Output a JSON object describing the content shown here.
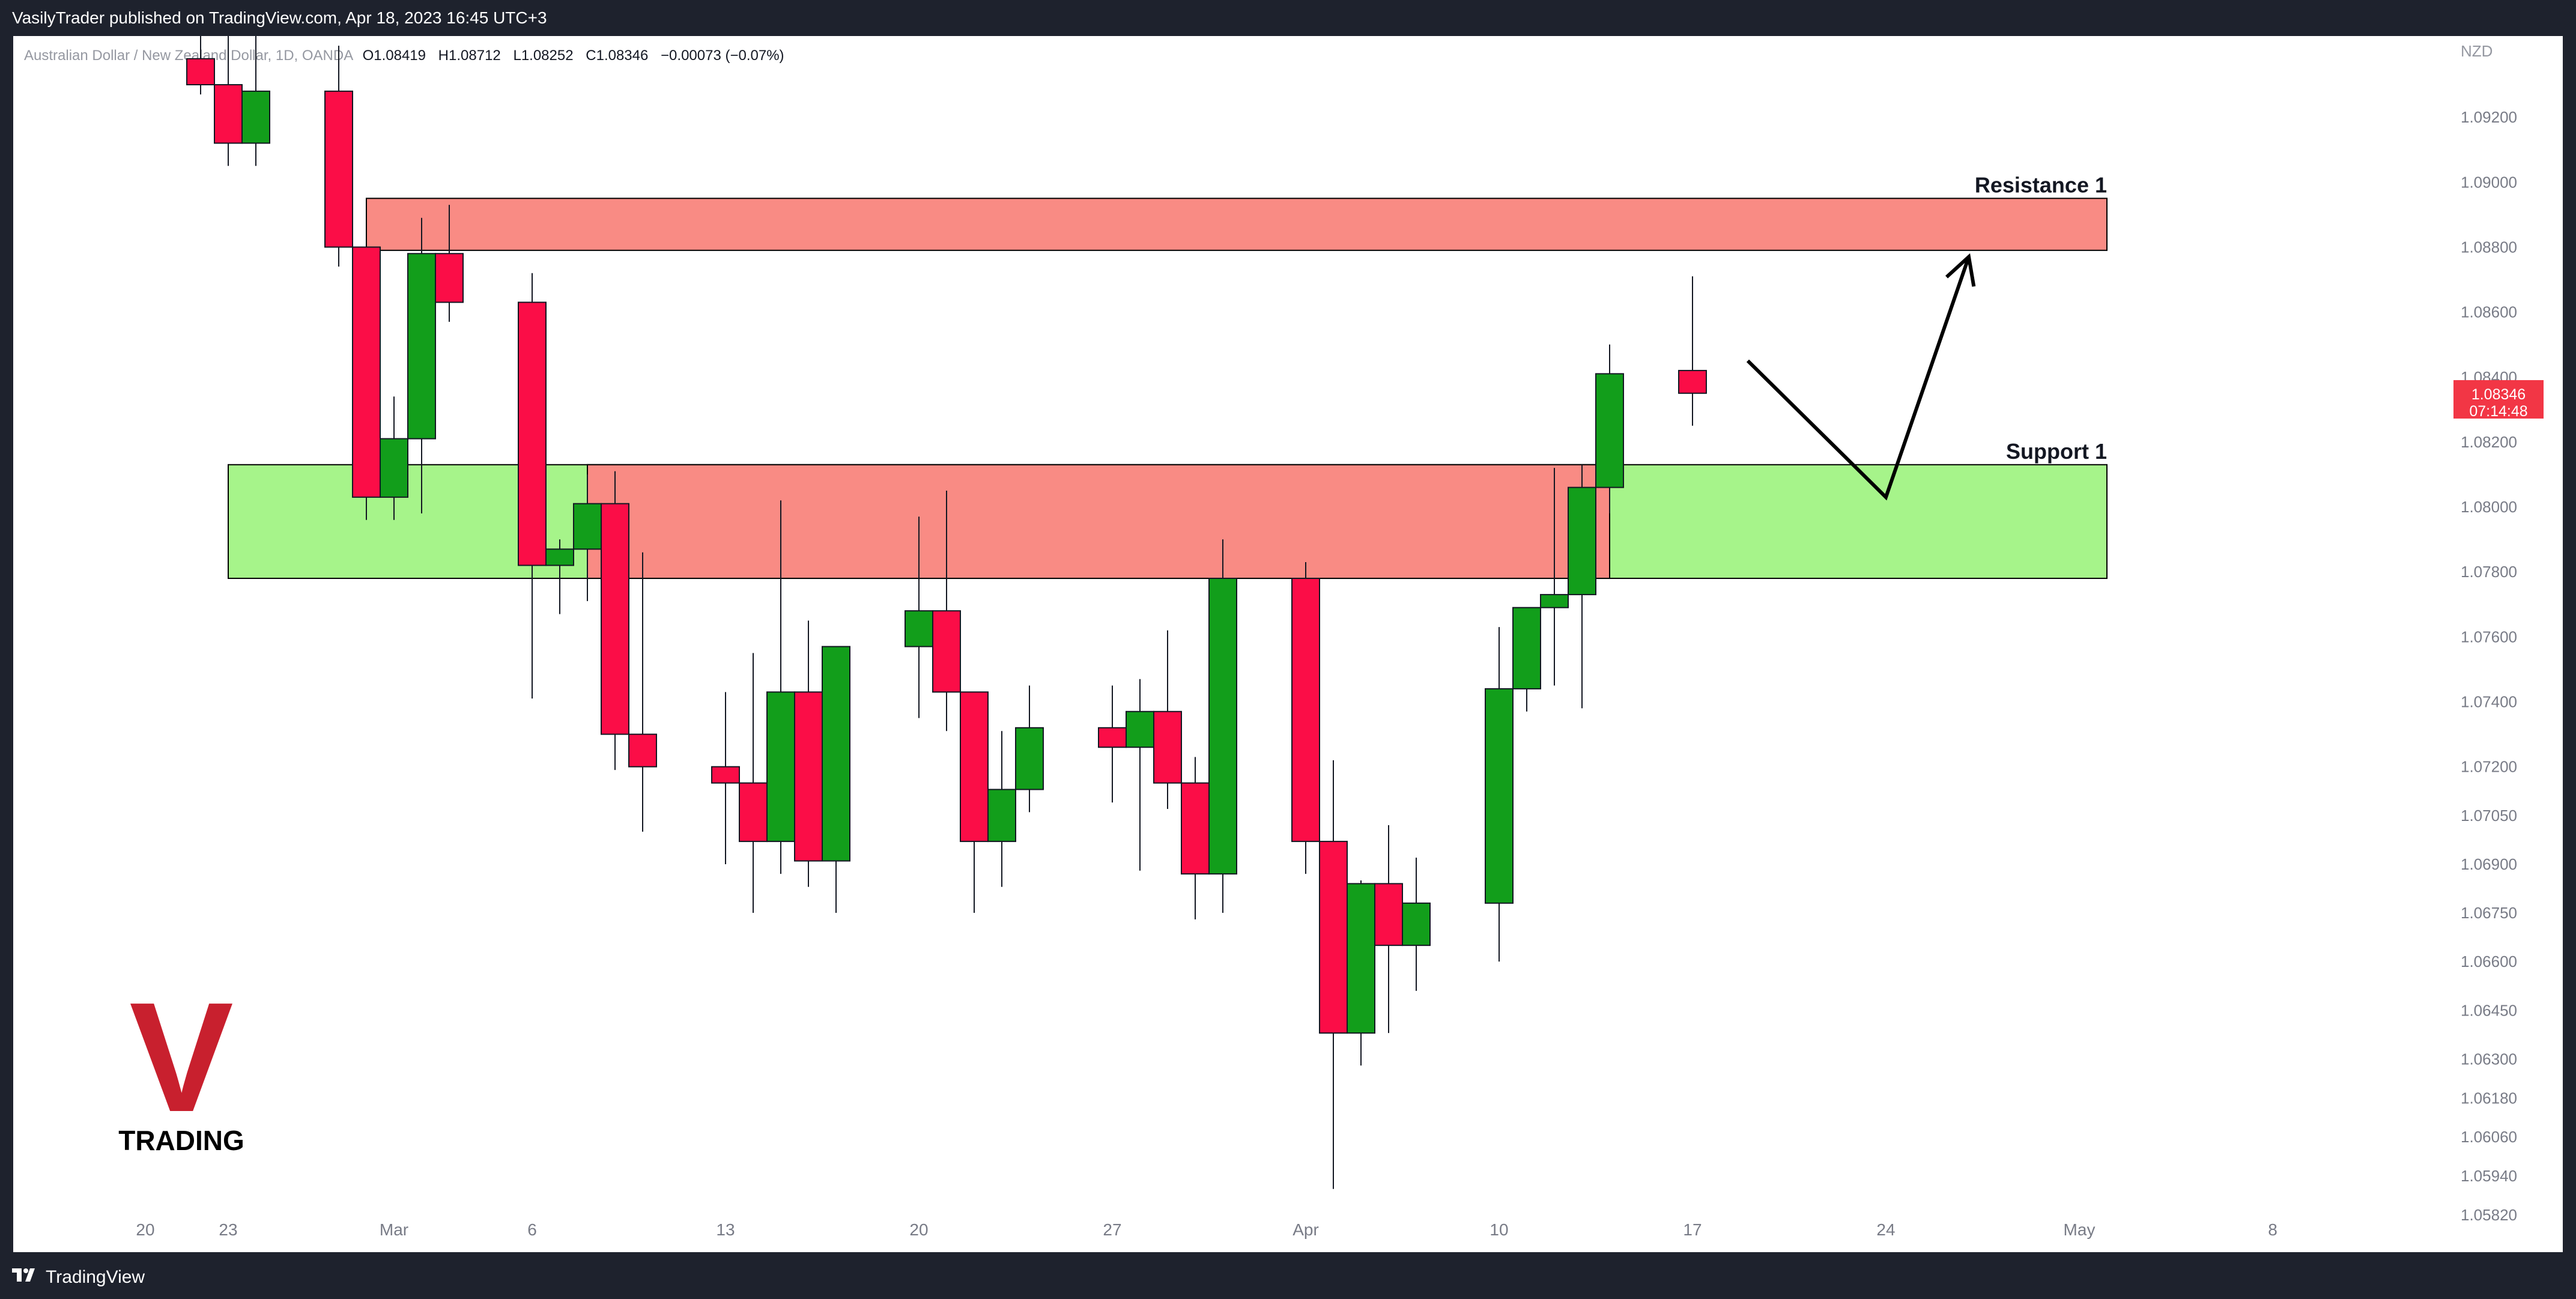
{
  "header": {
    "published_text": "VasilyTrader published on TradingView.com, Apr 18, 2023 16:45 UTC+3"
  },
  "symbol_line": {
    "symbol": "Australian Dollar / New Zealand Dollar, 1D, OANDA",
    "o_label": "O",
    "o_value": "1.08419",
    "h_label": "H",
    "h_value": "1.08712",
    "l_label": "L",
    "l_value": "1.08252",
    "c_label": "C",
    "c_value": "1.08346",
    "change": "−0.00073 (−0.07%)"
  },
  "footer": {
    "brand": "TradingView"
  },
  "watermark": {
    "letter": "V",
    "text": "TRADING",
    "color": "#c8202e"
  },
  "price_axis": {
    "currency": "NZD",
    "current_price_label": "1.08346",
    "countdown": "07:14:48"
  },
  "colors": {
    "up": "#129e1b",
    "down": "#fb0d47",
    "resistance_zone": "#f98b84",
    "support_zone": "#a6f48a",
    "price_tag": "#f23645"
  },
  "chart_data": {
    "type": "candlestick",
    "symbol": "AUDNZD",
    "timeframe": "1D",
    "ylim": [
      1.0582,
      1.0935
    ],
    "y_ticks": [
      "1.09200",
      "1.09000",
      "1.08800",
      "1.08600",
      "1.08400",
      "1.08200",
      "1.08000",
      "1.07800",
      "1.07600",
      "1.07400",
      "1.07200",
      "1.07050",
      "1.06900",
      "1.06750",
      "1.06600",
      "1.06450",
      "1.06300",
      "1.06180",
      "1.06060",
      "1.05940",
      "1.05820"
    ],
    "x_ticks": [
      {
        "label": "20",
        "date": "2023-02-20"
      },
      {
        "label": "23",
        "date": "2023-02-23"
      },
      {
        "label": "Mar",
        "date": "2023-03-01"
      },
      {
        "label": "6",
        "date": "2023-03-06"
      },
      {
        "label": "13",
        "date": "2023-03-13"
      },
      {
        "label": "20",
        "date": "2023-03-20"
      },
      {
        "label": "27",
        "date": "2023-03-27"
      },
      {
        "label": "Apr",
        "date": "2023-04-03"
      },
      {
        "label": "10",
        "date": "2023-04-10"
      },
      {
        "label": "17",
        "date": "2023-04-17"
      },
      {
        "label": "24",
        "date": "2023-04-24"
      },
      {
        "label": "May",
        "date": "2023-05-01"
      },
      {
        "label": "8",
        "date": "2023-05-08"
      }
    ],
    "candles": [
      {
        "date": "2023-02-22",
        "o": 1.0938,
        "h": 1.095,
        "l": 1.0927,
        "c": 1.093
      },
      {
        "date": "2023-02-23",
        "o": 1.093,
        "h": 1.095,
        "l": 1.0905,
        "c": 1.0912
      },
      {
        "date": "2023-02-24",
        "o": 1.0912,
        "h": 1.0945,
        "l": 1.0905,
        "c": 1.0928
      },
      {
        "date": "2023-02-27",
        "o": 1.0928,
        "h": 1.0942,
        "l": 1.0874,
        "c": 1.088
      },
      {
        "date": "2023-02-28",
        "o": 1.088,
        "h": 1.088,
        "l": 1.0796,
        "c": 1.0803
      },
      {
        "date": "2023-03-01",
        "o": 1.0803,
        "h": 1.0834,
        "l": 1.0796,
        "c": 1.0821
      },
      {
        "date": "2023-03-02",
        "o": 1.0821,
        "h": 1.0889,
        "l": 1.0798,
        "c": 1.0878
      },
      {
        "date": "2023-03-03",
        "o": 1.0878,
        "h": 1.0893,
        "l": 1.0857,
        "c": 1.0863
      },
      {
        "date": "2023-03-06",
        "o": 1.0863,
        "h": 1.0872,
        "l": 1.0741,
        "c": 1.0782
      },
      {
        "date": "2023-03-07",
        "o": 1.0782,
        "h": 1.079,
        "l": 1.0767,
        "c": 1.0787
      },
      {
        "date": "2023-03-08",
        "o": 1.0787,
        "h": 1.081,
        "l": 1.0771,
        "c": 1.0801
      },
      {
        "date": "2023-03-09",
        "o": 1.0801,
        "h": 1.0811,
        "l": 1.0719,
        "c": 1.073
      },
      {
        "date": "2023-03-10",
        "o": 1.073,
        "h": 1.0786,
        "l": 1.07,
        "c": 1.072
      },
      {
        "date": "2023-03-13",
        "o": 1.072,
        "h": 1.0743,
        "l": 1.069,
        "c": 1.0715
      },
      {
        "date": "2023-03-14",
        "o": 1.0715,
        "h": 1.0755,
        "l": 1.0675,
        "c": 1.0697
      },
      {
        "date": "2023-03-15",
        "o": 1.0697,
        "h": 1.0802,
        "l": 1.0687,
        "c": 1.0743
      },
      {
        "date": "2023-03-16",
        "o": 1.0743,
        "h": 1.0765,
        "l": 1.0683,
        "c": 1.0691
      },
      {
        "date": "2023-03-17",
        "o": 1.0691,
        "h": 1.0757,
        "l": 1.0675,
        "c": 1.0757
      },
      {
        "date": "2023-03-20",
        "o": 1.0757,
        "h": 1.0797,
        "l": 1.0735,
        "c": 1.0768
      },
      {
        "date": "2023-03-21",
        "o": 1.0768,
        "h": 1.0805,
        "l": 1.0731,
        "c": 1.0743
      },
      {
        "date": "2023-03-22",
        "o": 1.0743,
        "h": 1.0743,
        "l": 1.0675,
        "c": 1.0697
      },
      {
        "date": "2023-03-23",
        "o": 1.0697,
        "h": 1.0731,
        "l": 1.0683,
        "c": 1.0713
      },
      {
        "date": "2023-03-24",
        "o": 1.0713,
        "h": 1.0745,
        "l": 1.0706,
        "c": 1.0732
      },
      {
        "date": "2023-03-27",
        "o": 1.0732,
        "h": 1.0745,
        "l": 1.0709,
        "c": 1.0726
      },
      {
        "date": "2023-03-28",
        "o": 1.0726,
        "h": 1.0747,
        "l": 1.0688,
        "c": 1.0737
      },
      {
        "date": "2023-03-29",
        "o": 1.0737,
        "h": 1.0762,
        "l": 1.0707,
        "c": 1.0715
      },
      {
        "date": "2023-03-30",
        "o": 1.0715,
        "h": 1.0723,
        "l": 1.0673,
        "c": 1.0687
      },
      {
        "date": "2023-03-31",
        "o": 1.0687,
        "h": 1.079,
        "l": 1.0675,
        "c": 1.0778
      },
      {
        "date": "2023-04-03",
        "o": 1.0778,
        "h": 1.0783,
        "l": 1.0687,
        "c": 1.0697
      },
      {
        "date": "2023-04-04",
        "o": 1.0697,
        "h": 1.0722,
        "l": 1.059,
        "c": 1.0638
      },
      {
        "date": "2023-04-05",
        "o": 1.0638,
        "h": 1.0685,
        "l": 1.0628,
        "c": 1.0684
      },
      {
        "date": "2023-04-06",
        "o": 1.0684,
        "h": 1.0702,
        "l": 1.0638,
        "c": 1.0665
      },
      {
        "date": "2023-04-07",
        "o": 1.0665,
        "h": 1.0692,
        "l": 1.0651,
        "c": 1.0678
      },
      {
        "date": "2023-04-10",
        "o": 1.0678,
        "h": 1.0763,
        "l": 1.066,
        "c": 1.0744
      },
      {
        "date": "2023-04-11",
        "o": 1.0744,
        "h": 1.0769,
        "l": 1.0737,
        "c": 1.0769
      },
      {
        "date": "2023-04-12",
        "o": 1.0769,
        "h": 1.0812,
        "l": 1.0745,
        "c": 1.0773
      },
      {
        "date": "2023-04-13",
        "o": 1.0773,
        "h": 1.0813,
        "l": 1.0738,
        "c": 1.0806
      },
      {
        "date": "2023-04-14",
        "o": 1.0806,
        "h": 1.085,
        "l": 1.0798,
        "c": 1.0841
      },
      {
        "date": "2023-04-17",
        "o": 1.0842,
        "h": 1.0871,
        "l": 1.0825,
        "c": 1.0835
      }
    ],
    "zones": [
      {
        "label": "Resistance 1",
        "low": 1.0879,
        "high": 1.0895,
        "from": "2023-02-28",
        "to": "2023-05-02",
        "color": "#f98b84"
      },
      {
        "label": "Support 1",
        "low": 1.0778,
        "high": 1.0813,
        "from": "2023-02-23",
        "to": "2023-05-02",
        "color": "#a6f48a"
      },
      {
        "label": "",
        "low": 1.0778,
        "high": 1.0813,
        "from": "2023-03-08",
        "to": "2023-04-14",
        "color": "#f98b84"
      }
    ],
    "projection": [
      {
        "date": "2023-04-19",
        "price": 1.0845
      },
      {
        "date": "2023-04-24",
        "price": 1.0803
      },
      {
        "date": "2023-04-27",
        "price": 1.0877
      }
    ]
  }
}
